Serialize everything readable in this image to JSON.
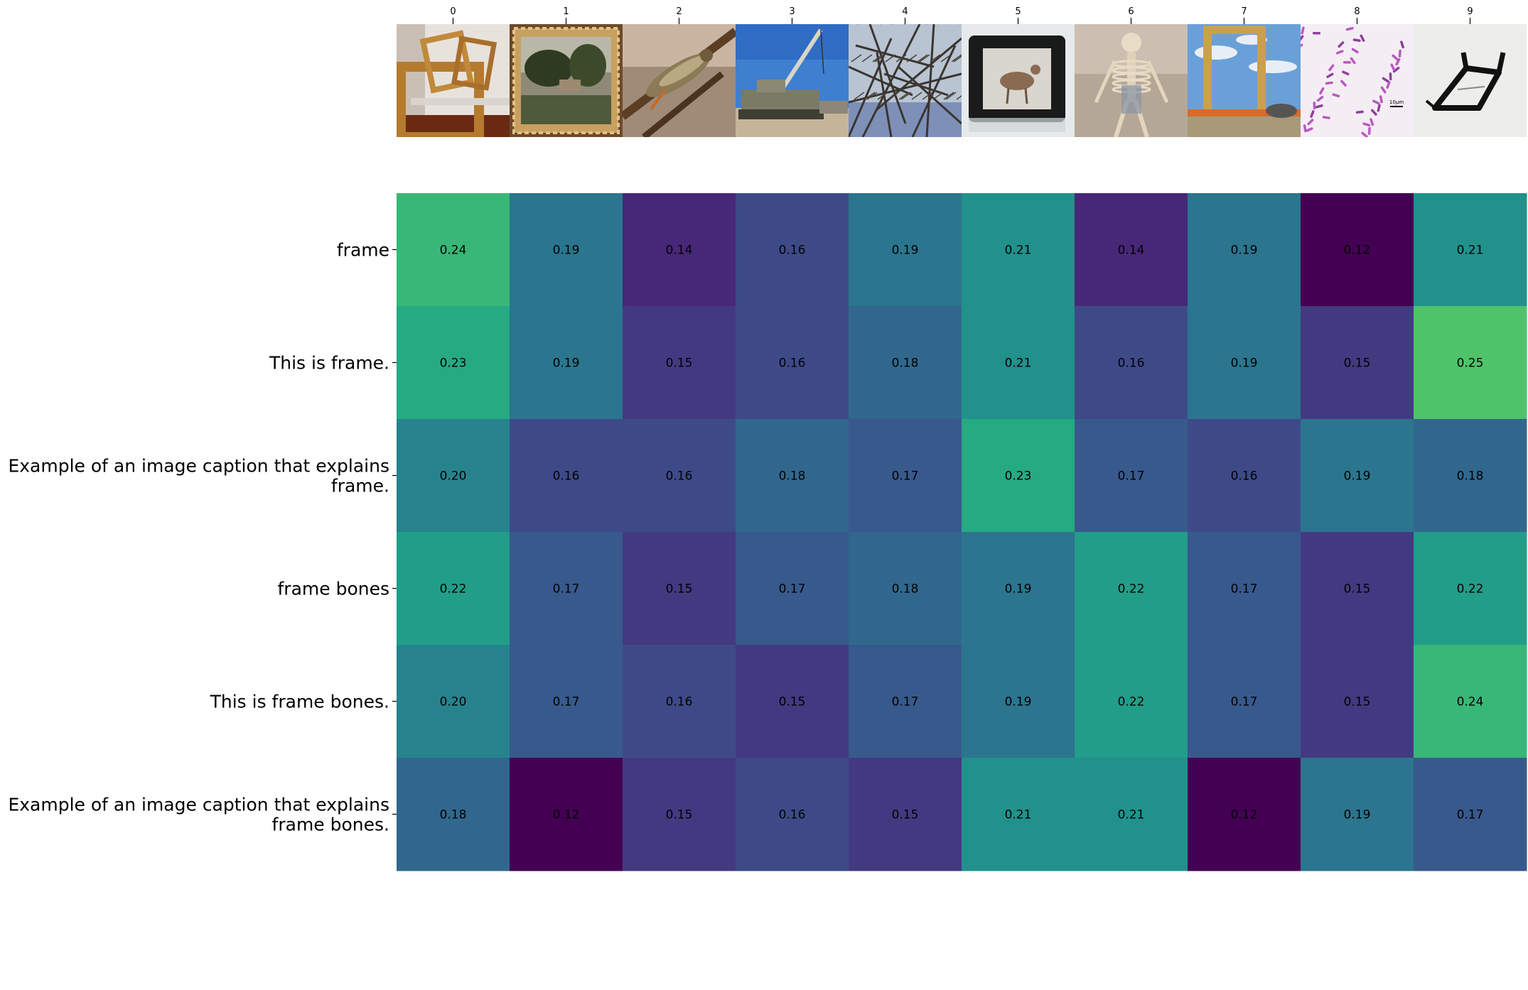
{
  "chart_data": {
    "type": "heatmap",
    "colormap": "viridis",
    "value_range": [
      0.12,
      0.25
    ],
    "x_tick_labels": [
      "0",
      "1",
      "2",
      "3",
      "4",
      "5",
      "6",
      "7",
      "8",
      "9"
    ],
    "image_thumbnails": [
      {
        "index": "0",
        "subject": "empty gilded wooden frames"
      },
      {
        "index": "1",
        "subject": "landscape painting in ornate gold frame"
      },
      {
        "index": "2",
        "subject": "grasshopper on a branch"
      },
      {
        "index": "3",
        "subject": "military crane vehicle in desert"
      },
      {
        "index": "4",
        "subject": "bare tree branches against sky"
      },
      {
        "index": "5",
        "subject": "digital photo frame showing a deer"
      },
      {
        "index": "6",
        "subject": "animal skeleton on display"
      },
      {
        "index": "7",
        "subject": "giant picture frame building under blue sky"
      },
      {
        "index": "8",
        "subject": "stained bacteria under microscope",
        "scale_bar_text": "10μm"
      },
      {
        "index": "9",
        "subject": "black bicycle frame"
      }
    ],
    "y_tick_labels": [
      [
        "frame"
      ],
      [
        "This is frame."
      ],
      [
        "Example of an image caption that explains",
        "frame."
      ],
      [
        "frame bones"
      ],
      [
        "This is frame bones."
      ],
      [
        "Example of an image caption that explains",
        "frame bones."
      ]
    ],
    "values": [
      [
        0.24,
        0.19,
        0.14,
        0.16,
        0.19,
        0.21,
        0.14,
        0.19,
        0.12,
        0.21
      ],
      [
        0.23,
        0.19,
        0.15,
        0.16,
        0.18,
        0.21,
        0.16,
        0.19,
        0.15,
        0.25
      ],
      [
        0.2,
        0.16,
        0.16,
        0.18,
        0.17,
        0.23,
        0.17,
        0.16,
        0.19,
        0.18
      ],
      [
        0.22,
        0.17,
        0.15,
        0.17,
        0.18,
        0.19,
        0.22,
        0.17,
        0.15,
        0.22
      ],
      [
        0.2,
        0.17,
        0.16,
        0.15,
        0.17,
        0.19,
        0.22,
        0.17,
        0.15,
        0.24
      ],
      [
        0.18,
        0.12,
        0.15,
        0.16,
        0.15,
        0.21,
        0.21,
        0.12,
        0.19,
        0.17
      ]
    ]
  }
}
